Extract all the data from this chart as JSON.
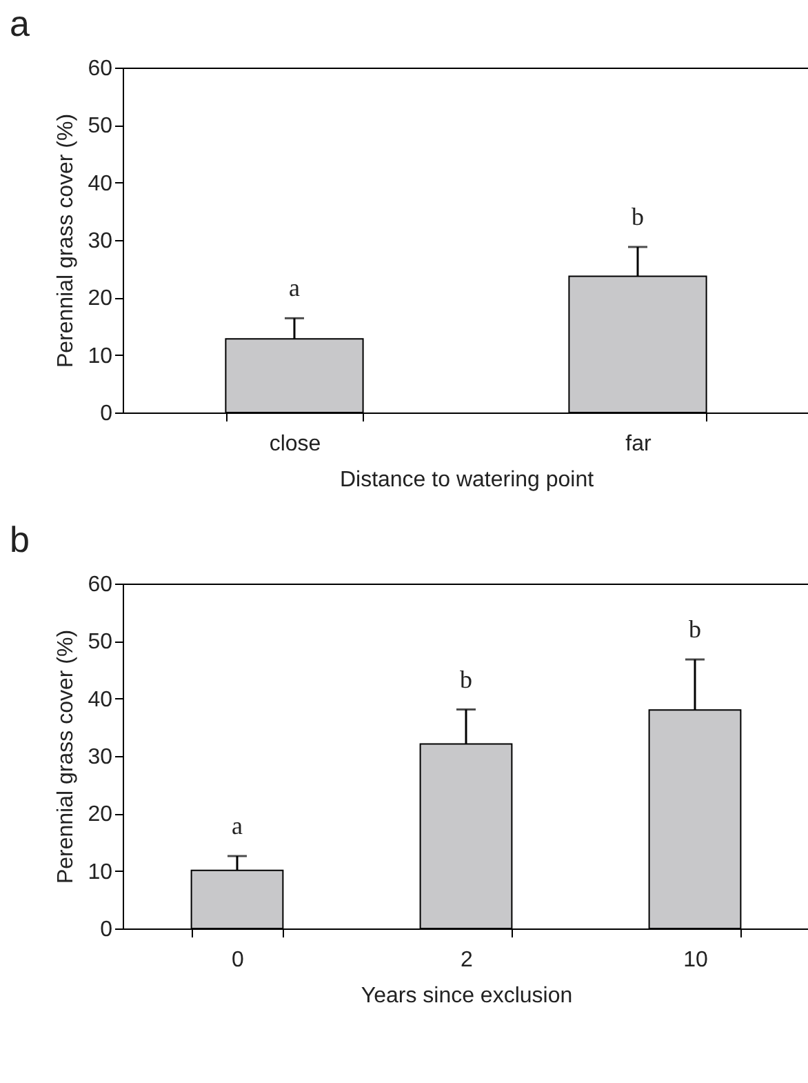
{
  "chart_data": [
    {
      "type": "bar",
      "title": "a",
      "xlabel": "Distance to watering point",
      "ylabel": "Perennial grass cover (%)",
      "categories": [
        "close",
        "far"
      ],
      "values": [
        12.8,
        23.7
      ],
      "color": "#c8c8ca",
      "errors": [
        [
          12.8,
          16.4
        ],
        [
          23.7,
          28.8
        ]
      ],
      "ylim": [
        0,
        60
      ],
      "yticks": [
        0,
        10,
        20,
        30,
        40,
        50,
        60
      ],
      "annotations": [
        {
          "text": "a",
          "x": "close",
          "y": 16.4
        },
        {
          "text": "b",
          "x": "far",
          "y": 28.8
        }
      ]
    },
    {
      "type": "bar",
      "title": "b",
      "xlabel": "Years since exclusion",
      "ylabel": "Perennial grass cover (%)",
      "categories": [
        "0",
        "2",
        "10"
      ],
      "values": [
        10.1,
        32.1,
        38.0
      ],
      "color": "#c8c8ca",
      "errors": [
        [
          10.1,
          12.6
        ],
        [
          32.1,
          38.1
        ],
        [
          38.0,
          46.8
        ]
      ],
      "ylim": [
        0,
        60
      ],
      "yticks": [
        0,
        10,
        20,
        30,
        40,
        50,
        60
      ],
      "annotations": [
        {
          "text": "a",
          "x": "0",
          "y": 12.6
        },
        {
          "text": "b",
          "x": "2",
          "y": 38.1
        },
        {
          "text": "b",
          "x": "10",
          "y": 46.8
        }
      ]
    }
  ]
}
